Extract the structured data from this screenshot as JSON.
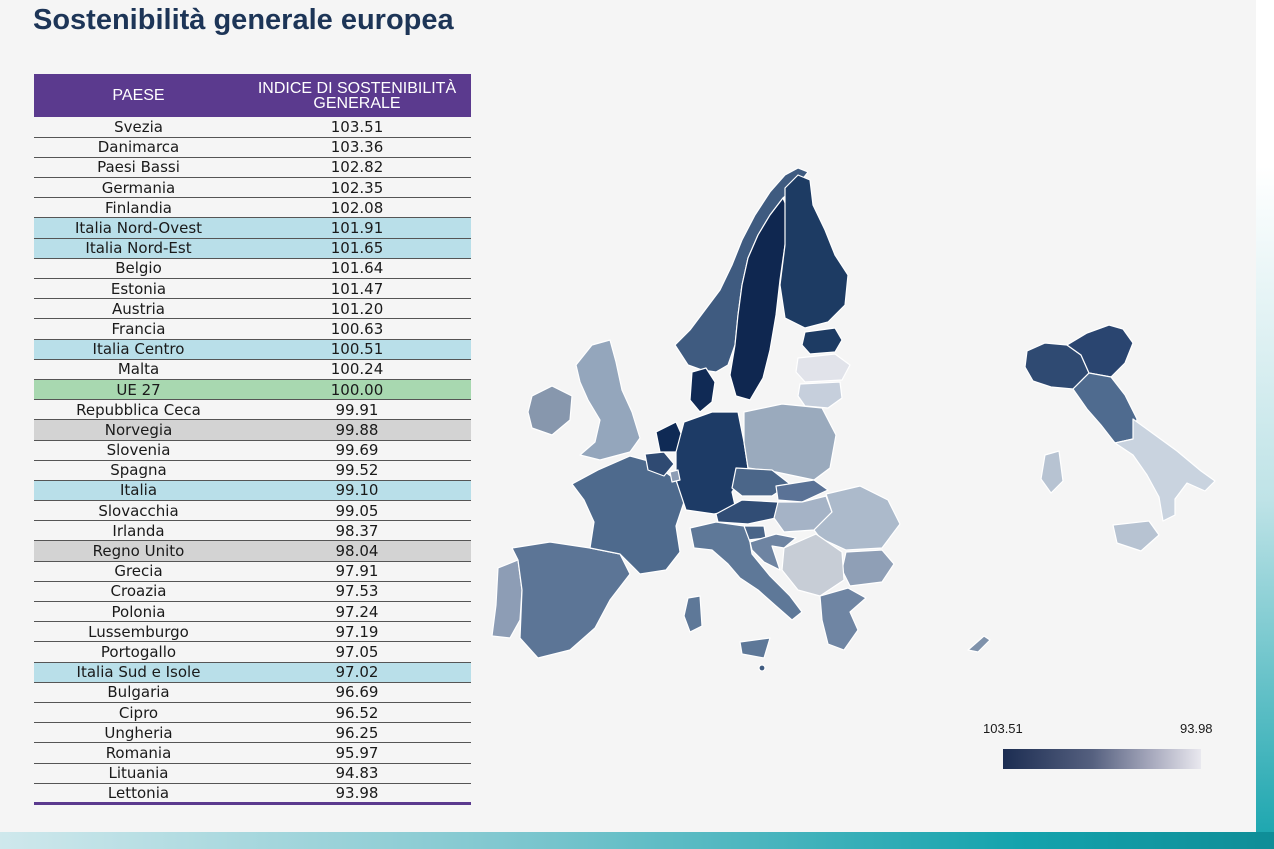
{
  "title": "Sostenibilità generale europea",
  "table": {
    "headers": [
      "PAESE",
      "INDICE DI SOSTENIBILITÀ GENERALE"
    ],
    "rows": [
      {
        "paese": "Svezia",
        "indice": "103.51",
        "group": ""
      },
      {
        "paese": "Danimarca",
        "indice": "103.36",
        "group": ""
      },
      {
        "paese": "Paesi Bassi",
        "indice": "102.82",
        "group": ""
      },
      {
        "paese": "Germania",
        "indice": "102.35",
        "group": ""
      },
      {
        "paese": "Finlandia",
        "indice": "102.08",
        "group": ""
      },
      {
        "paese": "Italia Nord-Ovest",
        "indice": "101.91",
        "group": "it"
      },
      {
        "paese": "Italia Nord-Est",
        "indice": "101.65",
        "group": "it"
      },
      {
        "paese": "Belgio",
        "indice": "101.64",
        "group": ""
      },
      {
        "paese": "Estonia",
        "indice": "101.47",
        "group": ""
      },
      {
        "paese": "Austria",
        "indice": "101.20",
        "group": ""
      },
      {
        "paese": "Francia",
        "indice": "100.63",
        "group": ""
      },
      {
        "paese": "Italia Centro",
        "indice": "100.51",
        "group": "it"
      },
      {
        "paese": "Malta",
        "indice": "100.24",
        "group": ""
      },
      {
        "paese": "UE 27",
        "indice": "100.00",
        "group": "eu"
      },
      {
        "paese": "Repubblica Ceca",
        "indice": "99.91",
        "group": ""
      },
      {
        "paese": "Norvegia",
        "indice": "99.88",
        "group": "ne"
      },
      {
        "paese": "Slovenia",
        "indice": "99.69",
        "group": ""
      },
      {
        "paese": "Spagna",
        "indice": "99.52",
        "group": ""
      },
      {
        "paese": "Italia",
        "indice": "99.10",
        "group": "it"
      },
      {
        "paese": "Slovacchia",
        "indice": "99.05",
        "group": ""
      },
      {
        "paese": "Irlanda",
        "indice": "98.37",
        "group": ""
      },
      {
        "paese": "Regno Unito",
        "indice": "98.04",
        "group": "ne"
      },
      {
        "paese": "Grecia",
        "indice": "97.91",
        "group": ""
      },
      {
        "paese": "Croazia",
        "indice": "97.53",
        "group": ""
      },
      {
        "paese": "Polonia",
        "indice": "97.24",
        "group": ""
      },
      {
        "paese": "Lussemburgo",
        "indice": "97.19",
        "group": ""
      },
      {
        "paese": "Portogallo",
        "indice": "97.05",
        "group": ""
      },
      {
        "paese": "Italia Sud e Isole",
        "indice": "97.02",
        "group": "it"
      },
      {
        "paese": "Bulgaria",
        "indice": "96.69",
        "group": ""
      },
      {
        "paese": "Cipro",
        "indice": "96.52",
        "group": ""
      },
      {
        "paese": "Ungheria",
        "indice": "96.25",
        "group": ""
      },
      {
        "paese": "Romania",
        "indice": "95.97",
        "group": ""
      },
      {
        "paese": "Lituania",
        "indice": "94.83",
        "group": ""
      },
      {
        "paese": "Lettonia",
        "indice": "93.98",
        "group": ""
      }
    ]
  },
  "legend": {
    "min_label": "103.51",
    "max_label": "93.98",
    "dark_color": "#1c2d52",
    "light_color": "#e9e8ef"
  },
  "colors": {
    "header_bg": "#5b3a8e",
    "italy_row": "#b9dfe9",
    "eu_row": "#a8d8b0",
    "non_eu_row": "#d3d3d3",
    "title_color": "#1d3557"
  }
}
